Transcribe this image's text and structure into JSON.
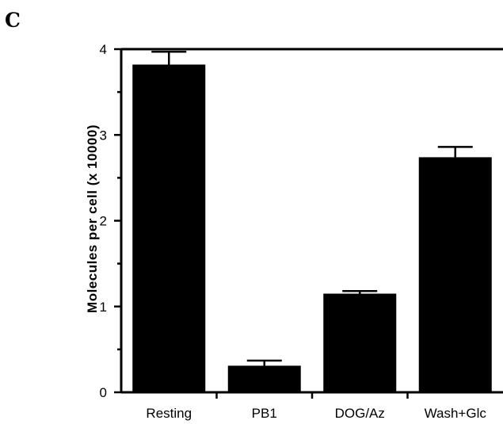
{
  "panel_label": "C",
  "chart_data": {
    "type": "bar",
    "title": "",
    "xlabel": "",
    "ylabel": "Molecules per cell (x 10000)",
    "categories": [
      "Resting",
      "PB1",
      "DOG/Az",
      "Wash+Glc"
    ],
    "values": [
      3.82,
      0.31,
      1.15,
      2.74
    ],
    "errors": [
      0.15,
      0.06,
      0.03,
      0.12
    ],
    "ylim": [
      0,
      4
    ],
    "yticks": [
      "0",
      "1",
      "2",
      "3",
      "4"
    ],
    "grid": false,
    "legend": "none",
    "bar_color": "#000000"
  }
}
